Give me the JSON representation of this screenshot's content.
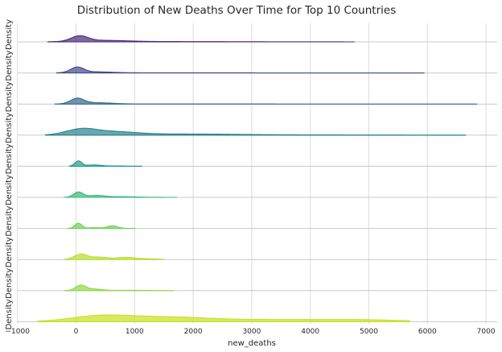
{
  "chart_data": {
    "type": "area",
    "title": "Distribution of New Deaths Over Time for Top 10 Countries",
    "xlabel": "new_deaths",
    "ylabel": "Density",
    "xlim": [
      -1000,
      7200
    ],
    "x_ticks": [
      -1000,
      0,
      1000,
      2000,
      3000,
      4000,
      5000,
      6000,
      7000
    ],
    "x_tick_labels": [
      "−1000",
      "0",
      "1000",
      "2000",
      "3000",
      "4000",
      "5000",
      "6000",
      "7000"
    ],
    "grid": "vertical only",
    "legend": "none",
    "series": [
      {
        "color": "#482878",
        "range": [
          -480,
          4750
        ],
        "peaks": [
          [
            60,
            1.0,
            140
          ],
          [
            450,
            0.25,
            400
          ],
          [
            1500,
            0.06,
            1200
          ]
        ]
      },
      {
        "color": "#3e4989",
        "range": [
          -330,
          5950
        ],
        "peaks": [
          [
            20,
            1.0,
            110
          ],
          [
            300,
            0.2,
            300
          ],
          [
            1500,
            0.03,
            1500
          ]
        ]
      },
      {
        "color": "#31688e",
        "range": [
          -360,
          6850
        ],
        "peaks": [
          [
            20,
            1.0,
            110
          ],
          [
            320,
            0.25,
            280
          ],
          [
            2000,
            0.02,
            1500
          ]
        ]
      },
      {
        "color": "#26828e",
        "range": [
          -520,
          6650
        ],
        "peaks": [
          [
            80,
            1.0,
            250
          ],
          [
            600,
            0.6,
            400
          ],
          [
            1800,
            0.2,
            900
          ],
          [
            4000,
            0.05,
            1500
          ]
        ]
      },
      {
        "color": "#1f9e89",
        "range": [
          -110,
          1120
        ],
        "peaks": [
          [
            40,
            1.0,
            60
          ],
          [
            300,
            0.25,
            120
          ],
          [
            700,
            0.05,
            200
          ]
        ]
      },
      {
        "color": "#35b779",
        "range": [
          -200,
          1720
        ],
        "peaks": [
          [
            40,
            1.0,
            80
          ],
          [
            350,
            0.35,
            140
          ],
          [
            800,
            0.12,
            250
          ]
        ]
      },
      {
        "color": "#6ece58",
        "range": [
          -140,
          1010
        ],
        "peaks": [
          [
            40,
            1.0,
            60
          ],
          [
            300,
            0.15,
            90
          ],
          [
            620,
            0.5,
            90
          ]
        ]
      },
      {
        "color": "#b5de2b",
        "range": [
          -200,
          1500
        ],
        "peaks": [
          [
            80,
            1.0,
            110
          ],
          [
            400,
            0.45,
            150
          ],
          [
            850,
            0.4,
            150
          ],
          [
            1200,
            0.12,
            200
          ]
        ]
      },
      {
        "color": "#8fd744",
        "range": [
          -200,
          1660
        ],
        "peaks": [
          [
            80,
            1.0,
            90
          ],
          [
            320,
            0.28,
            130
          ],
          [
            900,
            0.06,
            300
          ]
        ]
      },
      {
        "color": "#c8e020",
        "range": [
          -650,
          5700
        ],
        "peaks": [
          [
            400,
            1.0,
            500
          ],
          [
            1500,
            0.8,
            700
          ],
          [
            3500,
            0.4,
            1200
          ],
          [
            5000,
            0.2,
            600
          ]
        ]
      }
    ]
  }
}
